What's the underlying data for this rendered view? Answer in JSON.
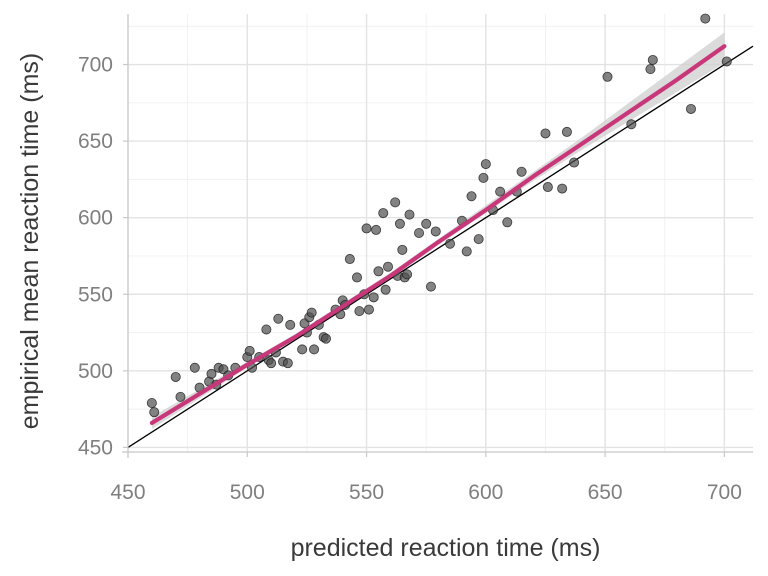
{
  "chart_data": {
    "type": "scatter",
    "title": "",
    "xlabel": "predicted reaction time (ms)",
    "ylabel": "empirical mean reaction time (ms)",
    "xlim": [
      450,
      712
    ],
    "ylim": [
      447,
      733
    ],
    "x_ticks": [
      450,
      500,
      550,
      600,
      650,
      700
    ],
    "y_ticks": [
      450,
      500,
      550,
      600,
      650,
      700
    ],
    "x_tick_labels": [
      "450",
      "500",
      "550",
      "600",
      "650",
      "700"
    ],
    "y_tick_labels": [
      "450",
      "500",
      "550",
      "600",
      "650",
      "700"
    ],
    "grid": true,
    "legend": "none",
    "points": [
      [
        460,
        479
      ],
      [
        461,
        473
      ],
      [
        470,
        496
      ],
      [
        472,
        483
      ],
      [
        478,
        502
      ],
      [
        480,
        489
      ],
      [
        484,
        493
      ],
      [
        485,
        498
      ],
      [
        487,
        491
      ],
      [
        488,
        502
      ],
      [
        490,
        501
      ],
      [
        492,
        497
      ],
      [
        495,
        502
      ],
      [
        500,
        509
      ],
      [
        501,
        513
      ],
      [
        502,
        502
      ],
      [
        505,
        509
      ],
      [
        508,
        527
      ],
      [
        509,
        507
      ],
      [
        510,
        505
      ],
      [
        512,
        512
      ],
      [
        513,
        534
      ],
      [
        515,
        506
      ],
      [
        517,
        505
      ],
      [
        518,
        530
      ],
      [
        523,
        514
      ],
      [
        524,
        531
      ],
      [
        525,
        525
      ],
      [
        526,
        535
      ],
      [
        527,
        538
      ],
      [
        528,
        514
      ],
      [
        530,
        530
      ],
      [
        532,
        522
      ],
      [
        533,
        521
      ],
      [
        537,
        540
      ],
      [
        539,
        537
      ],
      [
        540,
        546
      ],
      [
        541,
        543
      ],
      [
        543,
        573
      ],
      [
        546,
        561
      ],
      [
        547,
        539
      ],
      [
        549,
        550
      ],
      [
        550,
        593
      ],
      [
        551,
        540
      ],
      [
        553,
        548
      ],
      [
        554,
        592
      ],
      [
        555,
        565
      ],
      [
        557,
        603
      ],
      [
        558,
        553
      ],
      [
        559,
        568
      ],
      [
        562,
        610
      ],
      [
        563,
        562
      ],
      [
        564,
        596
      ],
      [
        565,
        579
      ],
      [
        566,
        561
      ],
      [
        567,
        563
      ],
      [
        568,
        602
      ],
      [
        572,
        590
      ],
      [
        575,
        596
      ],
      [
        577,
        555
      ],
      [
        579,
        591
      ],
      [
        585,
        583
      ],
      [
        590,
        598
      ],
      [
        592,
        578
      ],
      [
        594,
        614
      ],
      [
        597,
        586
      ],
      [
        599,
        626
      ],
      [
        600,
        635
      ],
      [
        603,
        605
      ],
      [
        606,
        617
      ],
      [
        609,
        597
      ],
      [
        613,
        617
      ],
      [
        615,
        630
      ],
      [
        625,
        655
      ],
      [
        626,
        620
      ],
      [
        632,
        619
      ],
      [
        634,
        656
      ],
      [
        637,
        636
      ],
      [
        651,
        692
      ],
      [
        661,
        661
      ],
      [
        669,
        697
      ],
      [
        670,
        703
      ],
      [
        686,
        671
      ],
      [
        692,
        730
      ],
      [
        701,
        702
      ]
    ],
    "point_color": "#4d4d4d",
    "smooth_line": {
      "color": "#c8377a",
      "band_color": "#cfcfcf",
      "x": [
        460,
        480,
        500,
        520,
        540,
        560,
        580,
        600,
        620,
        640,
        660,
        680,
        700
      ],
      "y": [
        466,
        485,
        504,
        522,
        542,
        562,
        584,
        605,
        627,
        648,
        669,
        690,
        712
      ],
      "band_lower": [
        462,
        482,
        502,
        520,
        540,
        560,
        582,
        603,
        624,
        644,
        663,
        682,
        701
      ],
      "band_upper": [
        470,
        488,
        506,
        524,
        544,
        564,
        586,
        608,
        630,
        652,
        675,
        698,
        721
      ]
    },
    "reference_line": {
      "type": "identity",
      "color": "#000000",
      "x": [
        450,
        712
      ],
      "y": [
        450,
        712
      ]
    }
  }
}
